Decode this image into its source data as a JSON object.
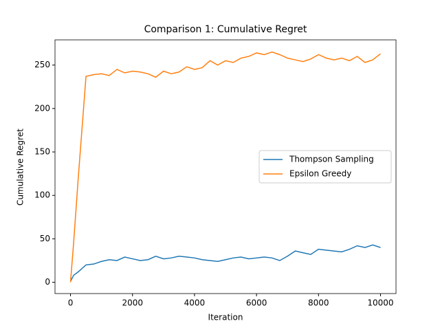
{
  "chart_data": {
    "type": "line",
    "title": "Comparison 1: Cumulative Regret",
    "xlabel": "Iteration",
    "ylabel": "Cumulative Regret",
    "x": [
      0,
      100,
      250,
      500,
      750,
      1000,
      1250,
      1500,
      1750,
      2000,
      2250,
      2500,
      2750,
      3000,
      3250,
      3500,
      3750,
      4000,
      4250,
      4500,
      4750,
      5000,
      5250,
      5500,
      5750,
      6000,
      6250,
      6500,
      6750,
      7000,
      7250,
      7500,
      7750,
      8000,
      8250,
      8500,
      8750,
      9000,
      9250,
      9500,
      9750,
      10000
    ],
    "series": [
      {
        "name": "Thompson Sampling",
        "color": "#1f77b4",
        "values": [
          1,
          8,
          12,
          20,
          21,
          24,
          26,
          25,
          29,
          27,
          25,
          26,
          30,
          27,
          28,
          30,
          29,
          28,
          26,
          25,
          24,
          26,
          28,
          29,
          27,
          28,
          29,
          28,
          25,
          30,
          36,
          34,
          32,
          38,
          37,
          36,
          35,
          38,
          42,
          40,
          43,
          40
        ]
      },
      {
        "name": "Epsilon Greedy",
        "color": "#ff7f0e",
        "values": [
          0,
          45,
          120,
          237,
          239,
          240,
          238,
          245,
          241,
          243,
          242,
          240,
          236,
          243,
          240,
          242,
          248,
          245,
          247,
          255,
          250,
          255,
          253,
          258,
          260,
          264,
          262,
          265,
          262,
          258,
          256,
          254,
          257,
          262,
          258,
          256,
          258,
          255,
          260,
          253,
          256,
          263
        ]
      }
    ],
    "xlim": [
      -500,
      10500
    ],
    "ylim": [
      -13,
      279
    ],
    "xticks": [
      0,
      2000,
      4000,
      6000,
      8000,
      10000
    ],
    "yticks": [
      0,
      50,
      100,
      150,
      200,
      250
    ],
    "legend": "center right"
  }
}
